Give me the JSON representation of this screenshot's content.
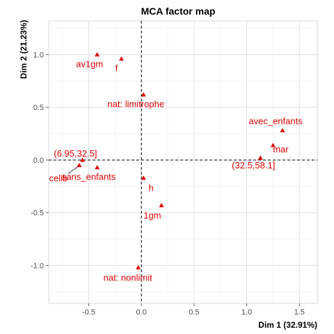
{
  "chart_data": {
    "type": "scatter",
    "title": "MCA factor map",
    "xlabel": "Dim 1 (32.91%)",
    "ylabel": "Dim 2 (21.23%)",
    "xlim": [
      -0.88,
      1.67
    ],
    "ylim": [
      -1.36,
      1.32
    ],
    "xticks": [
      -0.5,
      0.0,
      0.5,
      1.0,
      1.5
    ],
    "yticks": [
      -1.0,
      -0.5,
      0.0,
      0.5,
      1.0
    ],
    "xtick_labels": [
      "-0.5",
      "0.0",
      "0.5",
      "1.0",
      "1.5"
    ],
    "ytick_labels": [
      "-1.0",
      "-0.5",
      "0.0",
      "0.5",
      "1.0"
    ],
    "grid": true,
    "reference_lines": {
      "x": 0,
      "y": 0
    },
    "point_color": "#e00000",
    "points": [
      {
        "label": "av1gm",
        "x": -0.42,
        "y": 1.0
      },
      {
        "label": "f",
        "x": -0.19,
        "y": 0.96
      },
      {
        "label": "nat: limitrophe",
        "x": 0.02,
        "y": 0.62
      },
      {
        "label": "avec_enfants",
        "x": 1.34,
        "y": 0.28
      },
      {
        "label": "mar",
        "x": 1.25,
        "y": 0.14
      },
      {
        "label": "(32.5,58.1]",
        "x": 1.13,
        "y": 0.02
      },
      {
        "label": "(6.95,32.5]",
        "x": -0.56,
        "y": 0.0
      },
      {
        "label": "celib",
        "x": -0.59,
        "y": -0.05
      },
      {
        "label": "sans_enfants",
        "x": -0.42,
        "y": -0.07
      },
      {
        "label": "h",
        "x": 0.02,
        "y": -0.17
      },
      {
        "label": "1gm",
        "x": 0.19,
        "y": -0.43
      },
      {
        "label": "nat: nonlimit",
        "x": -0.03,
        "y": -1.02
      }
    ]
  }
}
